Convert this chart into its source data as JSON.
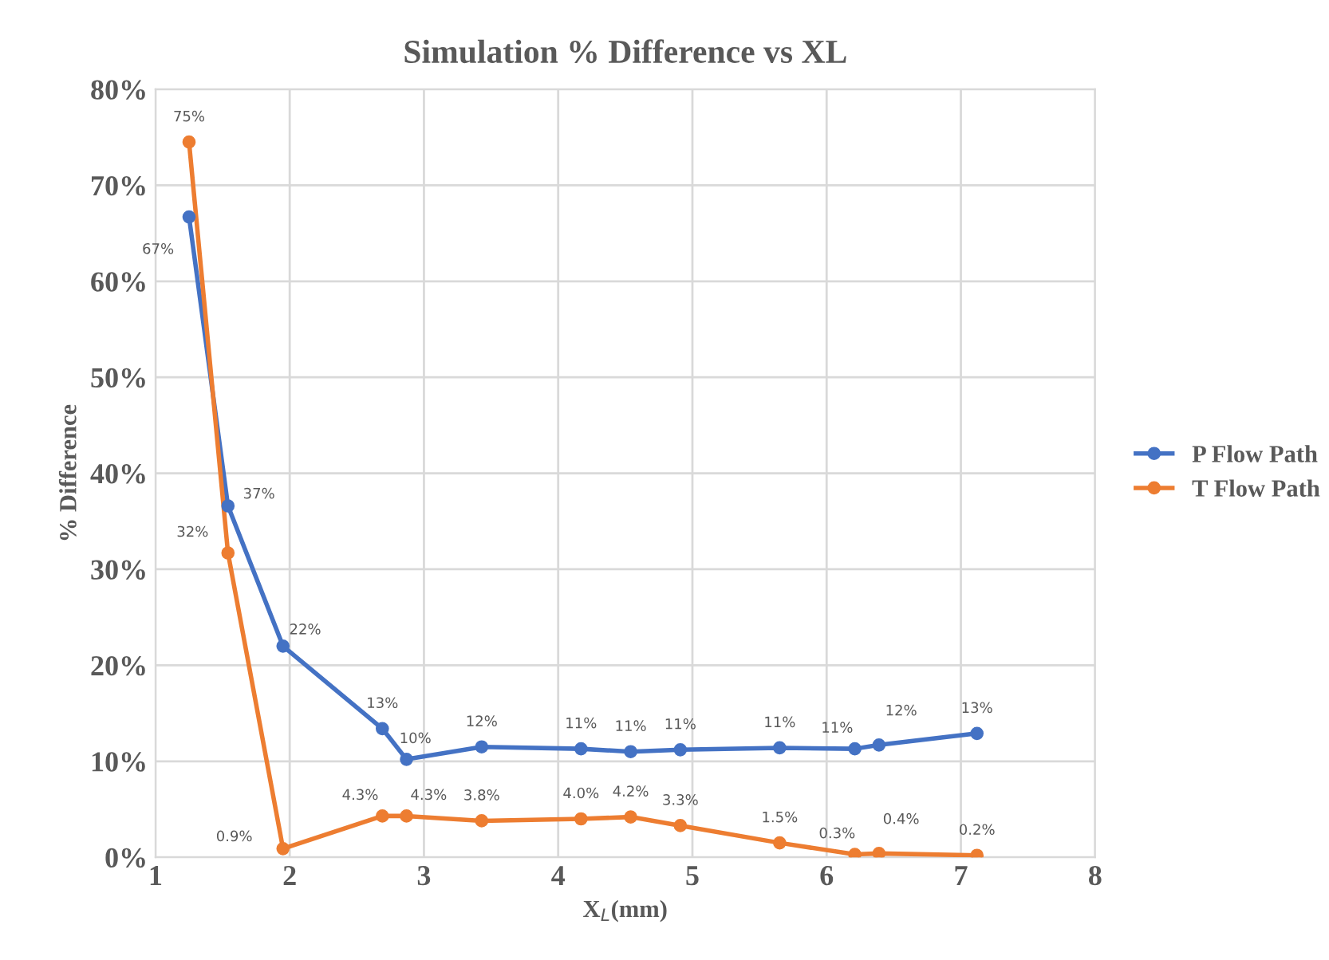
{
  "chart_data": {
    "type": "line",
    "title": "Simulation % Difference vs XL",
    "xlabel": "X$_{L}$(mm)",
    "ylabel": "% Difference",
    "xlim": [
      1,
      8
    ],
    "xticks": [
      1,
      2,
      3,
      4,
      5,
      6,
      7,
      8
    ],
    "ylim": [
      0,
      80
    ],
    "yticks": [
      {
        "value": 0,
        "label": "0%"
      },
      {
        "value": 10,
        "label": "10%"
      },
      {
        "value": 20,
        "label": "20%"
      },
      {
        "value": 30,
        "label": "30%"
      },
      {
        "value": 40,
        "label": "40%"
      },
      {
        "value": 50,
        "label": "50%"
      },
      {
        "value": 60,
        "label": "60%"
      },
      {
        "value": 70,
        "label": "70%"
      },
      {
        "value": 80,
        "label": "80%"
      }
    ],
    "grid": true,
    "legend": "right",
    "marker": "circle",
    "line_style": "solid",
    "series": [
      {
        "name": "P Flow Path",
        "color": "#4472c4",
        "x": [
          1.25,
          1.54,
          1.95,
          2.69,
          2.87,
          3.43,
          4.17,
          4.54,
          4.91,
          5.65,
          6.21,
          6.39,
          7.12
        ],
        "values": [
          66.7,
          36.6,
          22,
          13.4,
          10.2,
          11.5,
          11.3,
          11.0,
          11.2,
          11.4,
          11.3,
          11.7,
          12.9
        ],
        "value_labels": [
          "67%",
          "37%",
          "22%",
          "13%",
          "10%",
          "12%",
          "11%",
          "11%",
          "11%",
          "11%",
          "11%",
          "12%",
          "13%"
        ]
      },
      {
        "name": "T Flow Path",
        "color": "#ed7d31",
        "x": [
          1.25,
          1.54,
          1.95,
          2.69,
          2.87,
          3.43,
          4.17,
          4.54,
          4.91,
          5.65,
          6.21,
          6.39,
          7.12
        ],
        "values": [
          74.5,
          31.7,
          0.9,
          4.3,
          4.3,
          3.8,
          4.0,
          4.2,
          3.3,
          1.5,
          0.3,
          0.4,
          0.2
        ],
        "value_labels": [
          "75%",
          "32%",
          "0.9%",
          "4.3%",
          "4.3%",
          "3.8%",
          "4.0%",
          "4.2%",
          "3.3%",
          "1.5%",
          "0.3%",
          "0.4%",
          "0.2%"
        ]
      }
    ]
  }
}
